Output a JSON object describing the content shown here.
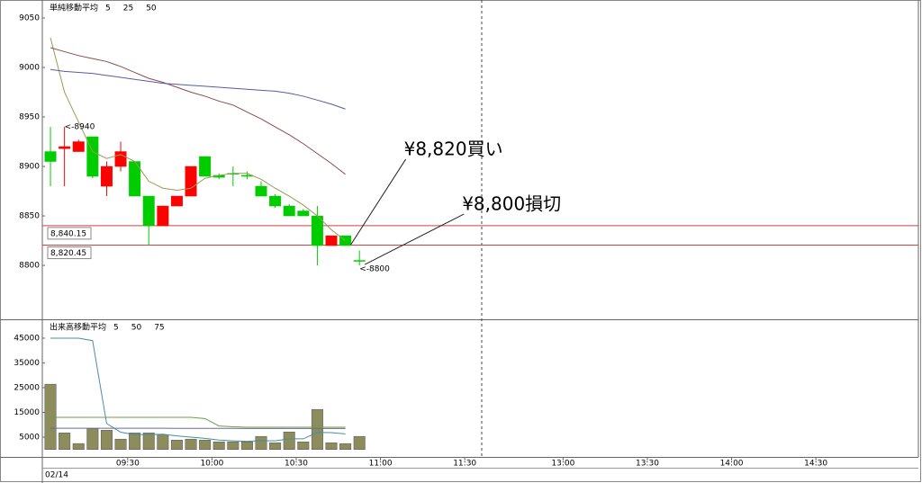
{
  "chart_data": [
    {
      "type": "candlestick",
      "legend_title": "単純移動平均",
      "xlim": [
        -0.58,
        61.8
      ],
      "ylim": [
        8745.5,
        9068.2
      ],
      "yticks": [
        8800,
        8850,
        8900,
        8950,
        9000,
        9050
      ],
      "up_color": "#ff0000",
      "down_color": "#00cc00",
      "open": [
        8915,
        8918,
        8915,
        8930,
        8880,
        8900,
        8905,
        8870,
        8840,
        8860,
        8870,
        8910,
        8891,
        8893,
        8891,
        8880,
        8870,
        8860,
        8855,
        8850,
        8820,
        8830,
        8805
      ],
      "high": [
        8940,
        8940,
        8927,
        8930,
        8905,
        8925,
        8905,
        8870,
        8860,
        8870,
        8900,
        8910,
        8893,
        8900,
        8895,
        8885,
        8872,
        8862,
        8857,
        8860,
        8830,
        8830,
        8815
      ],
      "low": [
        8880,
        8880,
        8915,
        8888,
        8870,
        8895,
        8870,
        8820,
        8840,
        8860,
        8870,
        8890,
        8887,
        8880,
        8887,
        8870,
        8858,
        8850,
        8850,
        8800,
        8820,
        8820,
        8800
      ],
      "close": [
        8905,
        8920,
        8925,
        8890,
        8900,
        8915,
        8870,
        8840,
        8860,
        8870,
        8900,
        8890,
        8889,
        8893,
        8890,
        8870,
        8860,
        8850,
        8850,
        8820,
        8830,
        8820,
        8805
      ],
      "series": [
        {
          "name": "5",
          "color": "#9a9a55",
          "values": [
            9030,
            8975,
            8945,
            8915,
            8908,
            8912,
            8905,
            8885,
            8878,
            8876,
            8878,
            8888,
            8891,
            8893,
            8893,
            8887,
            8878,
            8870,
            8861,
            8850,
            8836,
            8825,
            null
          ]
        },
        {
          "name": "25",
          "color": "#8b4a4a",
          "values": [
            9020,
            9016,
            9012,
            9009,
            9006,
            9001,
            8995,
            8989,
            8985,
            8980,
            8975,
            8971,
            8966,
            8962,
            8955,
            8948,
            8940,
            8932,
            8923,
            8913,
            8903,
            8892,
            null
          ]
        },
        {
          "name": "50",
          "color": "#5a5aa0",
          "values": [
            8998,
            8996,
            8995,
            8994,
            8992,
            8990,
            8988,
            8986,
            8984,
            8983,
            8982,
            8981,
            8980,
            8979,
            8978,
            8977,
            8976,
            8974,
            8971,
            8967,
            8963,
            8958,
            null
          ]
        }
      ],
      "price_lines": [
        {
          "value": 8840.15,
          "label": "8,840.15"
        },
        {
          "value": 8820.45,
          "label": "8,820.45"
        }
      ],
      "price_line_color": "#d04040",
      "markers": [
        {
          "index": 1,
          "value": 8940,
          "label": "<-8940",
          "color": "#ff0000"
        },
        {
          "index": 22,
          "value": 8800,
          "label": "<-8800",
          "color": "#00aa00"
        }
      ],
      "annotations": [
        {
          "index": 21,
          "value": 8820,
          "text": "¥8,820買い"
        },
        {
          "index": 22,
          "value": 8800,
          "text": "¥8,800損切"
        }
      ]
    },
    {
      "type": "bar",
      "legend_title": "出来高移動平均",
      "xlim": [
        -0.58,
        61.8
      ],
      "ylim": [
        -3000,
        51900
      ],
      "yticks": [
        5000,
        15000,
        25000,
        35000,
        45000
      ],
      "xticks": [
        {
          "value": 5.5,
          "label": "09:30"
        },
        {
          "value": 11.5,
          "label": "10:00"
        },
        {
          "value": 17.5,
          "label": "10:30"
        },
        {
          "value": 23.5,
          "label": "11:00"
        },
        {
          "value": 29.5,
          "label": "11:30"
        },
        {
          "value": 36.5,
          "label": "13:00"
        },
        {
          "value": 42.5,
          "label": "13:30"
        },
        {
          "value": 48.5,
          "label": "14:00"
        },
        {
          "value": 54.5,
          "label": "14:30"
        }
      ],
      "date_label": "02/14",
      "color": "#8c8c5c",
      "values": [
        26400,
        6700,
        2400,
        8500,
        7800,
        4200,
        6700,
        6700,
        6000,
        3800,
        4200,
        3800,
        3100,
        3100,
        3100,
        5300,
        2700,
        7100,
        3100,
        16200,
        2700,
        2400,
        5300
      ],
      "series": [
        {
          "name": "5",
          "color": "#4a8ca0",
          "values": [
            45000,
            45000,
            45000,
            44000,
            10500,
            7000,
            6000,
            6000,
            6200,
            5500,
            5000,
            4500,
            3800,
            3500,
            3300,
            3600,
            3500,
            4300,
            4300,
            6900,
            6800,
            6300,
            null
          ]
        },
        {
          "name": "50",
          "color": "#6a6aa0",
          "values": [
            8600,
            8600,
            8600,
            8600,
            8600,
            8600,
            8600,
            8600,
            8600,
            8550,
            8550,
            8550,
            8550,
            8550,
            8500,
            8500,
            8500,
            8500,
            8500,
            8500,
            8500,
            8500,
            null
          ]
        },
        {
          "name": "75",
          "color": "#6aa04a",
          "values": [
            13000,
            13000,
            13000,
            13000,
            13000,
            13000,
            13000,
            13000,
            13000,
            13000,
            13000,
            12500,
            9500,
            9200,
            9000,
            9000,
            9000,
            9000,
            9000,
            9000,
            9000,
            9000,
            null
          ]
        }
      ]
    }
  ]
}
